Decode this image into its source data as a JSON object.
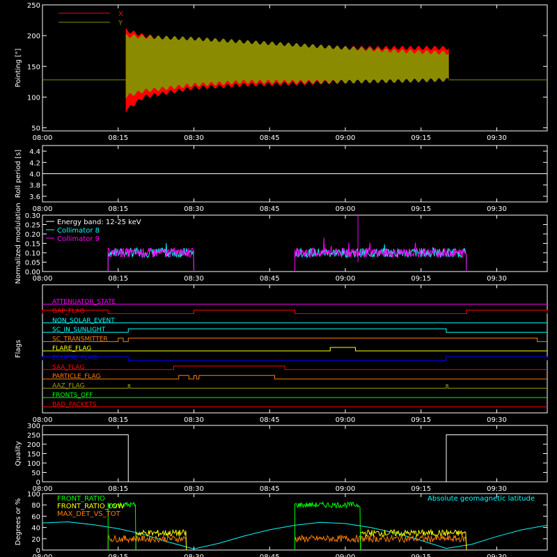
{
  "x_axis": {
    "start": "08:00",
    "end": "09:40",
    "tick_labels": [
      "08:00",
      "08:15",
      "08:30",
      "08:45",
      "09:00",
      "09:15",
      "09:30"
    ],
    "tick_minutes": [
      0,
      15,
      30,
      45,
      60,
      75,
      90
    ]
  },
  "colors": {
    "background": "#000000",
    "axes": "#ffffff",
    "red": "#ff0000",
    "olive": "#8b8b00",
    "cyan": "#00ffff",
    "magenta": "#ff00ff",
    "white": "#ffffff",
    "green": "#00ff00",
    "orange": "#ff8000",
    "yellow": "#ffff00",
    "blue": "#0000ff",
    "brown": "#a0a000"
  },
  "chart_data": [
    {
      "type": "line",
      "ylabel": "Pointing [\"]",
      "ylim": [
        45,
        250
      ],
      "yticks": [
        "50",
        "100",
        "150",
        "200",
        "250"
      ],
      "yvals": [
        50,
        100,
        150,
        200,
        250
      ],
      "legend": [
        "X",
        "Y"
      ],
      "series": [
        {
          "name": "X",
          "color": "#ff0000",
          "envelope": {
            "t_minutes": [
              16,
              20,
              30,
              40,
              50,
              60,
              70,
              80
            ],
            "upper": [
              210,
              200,
              190,
              185,
              180,
              180,
              180,
              180
            ],
            "lower": [
              75,
              100,
              115,
              120,
              122,
              125,
              128,
              130
            ]
          },
          "baseline": 128
        },
        {
          "name": "Y",
          "color": "#8b8b00",
          "envelope": {
            "t_minutes": [
              16,
              20,
              30,
              40,
              50,
              60,
              70,
              80
            ],
            "upper": [
              200,
              198,
              195,
              190,
              185,
              180,
              175,
              172
            ],
            "lower": [
              100,
              110,
              120,
              125,
              125,
              125,
              126,
              128
            ]
          },
          "baseline": 128
        }
      ],
      "active_window_minutes": [
        16.5,
        80.5
      ]
    },
    {
      "type": "line",
      "ylabel": "Roll period [s]",
      "ylim": [
        3.5,
        4.5
      ],
      "yticks": [
        "3.6",
        "3.8",
        "4.0",
        "4.2",
        "4.4"
      ],
      "yvals": [
        3.6,
        3.8,
        4.0,
        4.2,
        4.4
      ],
      "series": [
        {
          "name": "roll",
          "color": "#ffffff",
          "values": [
            4.0
          ]
        }
      ]
    },
    {
      "type": "line",
      "ylabel": "Normalized modulation",
      "ylim": [
        0,
        0.3
      ],
      "yticks": [
        "0.00",
        "0.05",
        "0.10",
        "0.15",
        "0.20",
        "0.25",
        "0.30"
      ],
      "yvals": [
        0,
        0.05,
        0.1,
        0.15,
        0.2,
        0.25,
        0.3
      ],
      "legend": [
        "Energy band: 12-25 keV",
        "Collimator 8",
        "Collimator 9"
      ],
      "series": [
        {
          "name": "Collimator 8",
          "color": "#00ffff",
          "windows_minutes": [
            [
              13,
              30
            ],
            [
              50,
              84
            ]
          ]
        },
        {
          "name": "Collimator 9",
          "color": "#ff00ff",
          "windows_minutes": [
            [
              13,
              30
            ],
            [
              50,
              84
            ]
          ]
        }
      ]
    },
    {
      "type": "line",
      "ylabel": "Flags",
      "flags": [
        {
          "name": "ATTENUATOR_STATE",
          "color": "#ff00ff",
          "high": []
        },
        {
          "name": "GAP_FLAG",
          "color": "#ff0000",
          "high": [
            [
              0,
              13
            ],
            [
              30,
              50
            ],
            [
              84,
              100
            ]
          ]
        },
        {
          "name": "NON_SOLAR_EVENT",
          "color": "#00ffff",
          "high": []
        },
        {
          "name": "SC_IN_SUNLIGHT",
          "color": "#00ffff",
          "high": [
            [
              17,
              80
            ]
          ]
        },
        {
          "name": "SC_TRANSMITTER",
          "color": "#ff8000",
          "high": [
            [
              15,
              16
            ],
            [
              17,
              98
            ]
          ]
        },
        {
          "name": "FLARE_FLAG",
          "color": "#ffff00",
          "high": [
            [
              57,
              62
            ]
          ]
        },
        {
          "name": "ECLIPSE_FLAG",
          "color": "#0000ff",
          "high": [
            [
              0,
              17
            ],
            [
              80,
              100
            ]
          ]
        },
        {
          "name": "SAA_FLAG",
          "color": "#ff0000",
          "high": [
            [
              26,
              48
            ]
          ]
        },
        {
          "name": "PARTICLE_FLAG",
          "color": "#ff8000",
          "high": [
            [
              27,
              29
            ],
            [
              30,
              30.5
            ],
            [
              31,
              46
            ]
          ]
        },
        {
          "name": "AAZ_FLAG",
          "color": "#a0a000",
          "high": [
            [
              17,
              17.3
            ],
            [
              80,
              80.3
            ]
          ]
        },
        {
          "name": "FRONTS_OFF",
          "color": "#00ff00",
          "high": []
        },
        {
          "name": "BAD_PACKETS",
          "color": "#ff0000",
          "high": []
        }
      ]
    },
    {
      "type": "line",
      "ylabel": "Quality",
      "ylim": [
        0,
        300
      ],
      "yticks": [
        "0",
        "50",
        "100",
        "150",
        "200",
        "250",
        "300"
      ],
      "yvals": [
        0,
        50,
        100,
        150,
        200,
        250,
        300
      ],
      "series": [
        {
          "name": "quality",
          "color": "#ffffff",
          "steps": [
            [
              0,
              250
            ],
            [
              17,
              250
            ],
            [
              17,
              0
            ],
            [
              80,
              0
            ],
            [
              80,
              250
            ],
            [
              100,
              250
            ]
          ]
        }
      ]
    },
    {
      "type": "line",
      "ylabel": "Degrees or %",
      "ylim": [
        0,
        100
      ],
      "yticks": [
        "0",
        "20",
        "40",
        "60",
        "80",
        "100"
      ],
      "yvals": [
        0,
        20,
        40,
        60,
        80,
        100
      ],
      "legend": [
        "FRONT_RATIO",
        "FRONT_RATIO_LOW",
        "MAX_DET_VS_TOT"
      ],
      "annotation": "Absolute geomagnetic latitude",
      "series": [
        {
          "name": "FRONT_RATIO",
          "color": "#00ff00",
          "windows_minutes": [
            [
              13,
              18.5
            ],
            [
              50,
              63
            ]
          ],
          "level": 80
        },
        {
          "name": "FRONT_RATIO_LOW",
          "color": "#ffff00",
          "windows_minutes": [
            [
              18.5,
              28.5
            ],
            [
              63,
              84
            ]
          ],
          "level": 30
        },
        {
          "name": "MAX_DET_VS_TOT",
          "color": "#ff8000",
          "windows_minutes": [
            [
              13,
              28.5
            ],
            [
              50,
              84
            ]
          ],
          "level": 20
        },
        {
          "name": "Absolute geomagnetic latitude",
          "color": "#00ffff",
          "t_minutes": [
            0,
            5,
            10,
            15,
            20,
            25,
            30,
            35,
            40,
            45,
            50,
            55,
            60,
            65,
            70,
            75,
            80,
            85,
            90,
            95,
            100
          ],
          "values": [
            48,
            50,
            45,
            38,
            28,
            14,
            2,
            12,
            25,
            36,
            44,
            49,
            47,
            40,
            30,
            17,
            3,
            10,
            24,
            36,
            44
          ]
        }
      ]
    }
  ]
}
